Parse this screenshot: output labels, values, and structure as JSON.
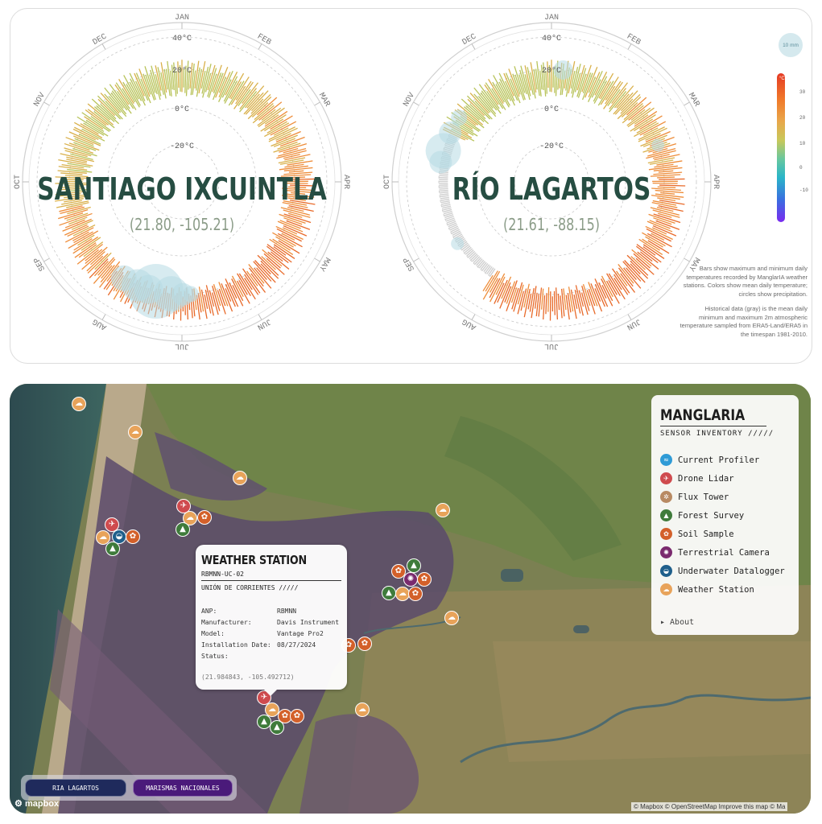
{
  "colors": {
    "title_green": "#264d42",
    "coords_green": "#8b9c88",
    "precip_blue": "#b7dbe3",
    "historic_gray": "#c9c9c9",
    "map_btn_ria": "#1f2a5c",
    "map_btn_marismas": "#4a1a7a"
  },
  "chart": {
    "months": [
      "JAN",
      "FEB",
      "MAR",
      "APR",
      "MAY",
      "JUN",
      "JUL",
      "AUG",
      "SEP",
      "OCT",
      "NOV",
      "DEC"
    ],
    "temp_rings": [
      "40°C",
      "20°C",
      "0°C",
      "-20°C"
    ],
    "stations": [
      {
        "name": "SANTIAGO IXCUINTLA",
        "coords": "(21.80, -105.21)"
      },
      {
        "name": "RÍO LAGARTOS",
        "coords": "(21.61, -88.15)"
      }
    ],
    "precip_legend": "10 mm",
    "colorbar_unit": "°C",
    "colorbar_ticks": [
      "30",
      "20",
      "10",
      "0",
      "-10"
    ],
    "note_1": "Bars show maximum and minimum daily temperatures recorded by ManglarIA weather stations. Colors show mean daily temperature; circles show precipitation.",
    "note_2": "Historical data (gray) is the mean daily minimum and maximum 2m atmospheric temperature sampled from ERA5-Land/ERA5 in the timespan 1981-2010."
  },
  "popup": {
    "title": "WEATHER STATION",
    "code": "RBMNN-UC-02",
    "site": "UNIÓN DE CORRIENTES /////",
    "fields": [
      {
        "key": "ANP:",
        "value": "RBMNN"
      },
      {
        "key": "Manufacturer:",
        "value": "Davis Instrument"
      },
      {
        "key": "Model:",
        "value": "Vantage Pro2"
      },
      {
        "key": "Installation Date:",
        "value": "08/27/2024"
      },
      {
        "key": "Status:",
        "value": ""
      }
    ],
    "coords": "(21.984843, -105.492712)"
  },
  "legend": {
    "title": "MANGLARIA",
    "subtitle": "SENSOR INVENTORY /////",
    "items": [
      {
        "label": "Current Profiler",
        "icon": "wave-icon",
        "cls": "cp",
        "glyph": "≈"
      },
      {
        "label": "Drone Lidar",
        "icon": "drone-icon",
        "cls": "dl",
        "glyph": "✈"
      },
      {
        "label": "Flux Tower",
        "icon": "flux-icon",
        "cls": "ft",
        "glyph": "✲"
      },
      {
        "label": "Forest Survey",
        "icon": "tree-icon",
        "cls": "fs",
        "glyph": "▲"
      },
      {
        "label": "Soil Sample",
        "icon": "sprout-icon",
        "cls": "ss",
        "glyph": "✿"
      },
      {
        "label": "Terrestrial Camera",
        "icon": "camera-icon",
        "cls": "tc",
        "glyph": "✺"
      },
      {
        "label": "Underwater Datalogger",
        "icon": "shell-icon",
        "cls": "ud",
        "glyph": "◒"
      },
      {
        "label": "Weather Station",
        "icon": "cloud-icon",
        "cls": "ws",
        "glyph": "☁"
      }
    ],
    "about": "▸ About"
  },
  "buttons": {
    "ria": "RIA LAGARTOS",
    "marismas": "MARISMAS NACIONALES"
  },
  "mapbox_logo": "mapbox",
  "attribution": "© Mapbox © OpenStreetMap Improve this map © Ma"
}
